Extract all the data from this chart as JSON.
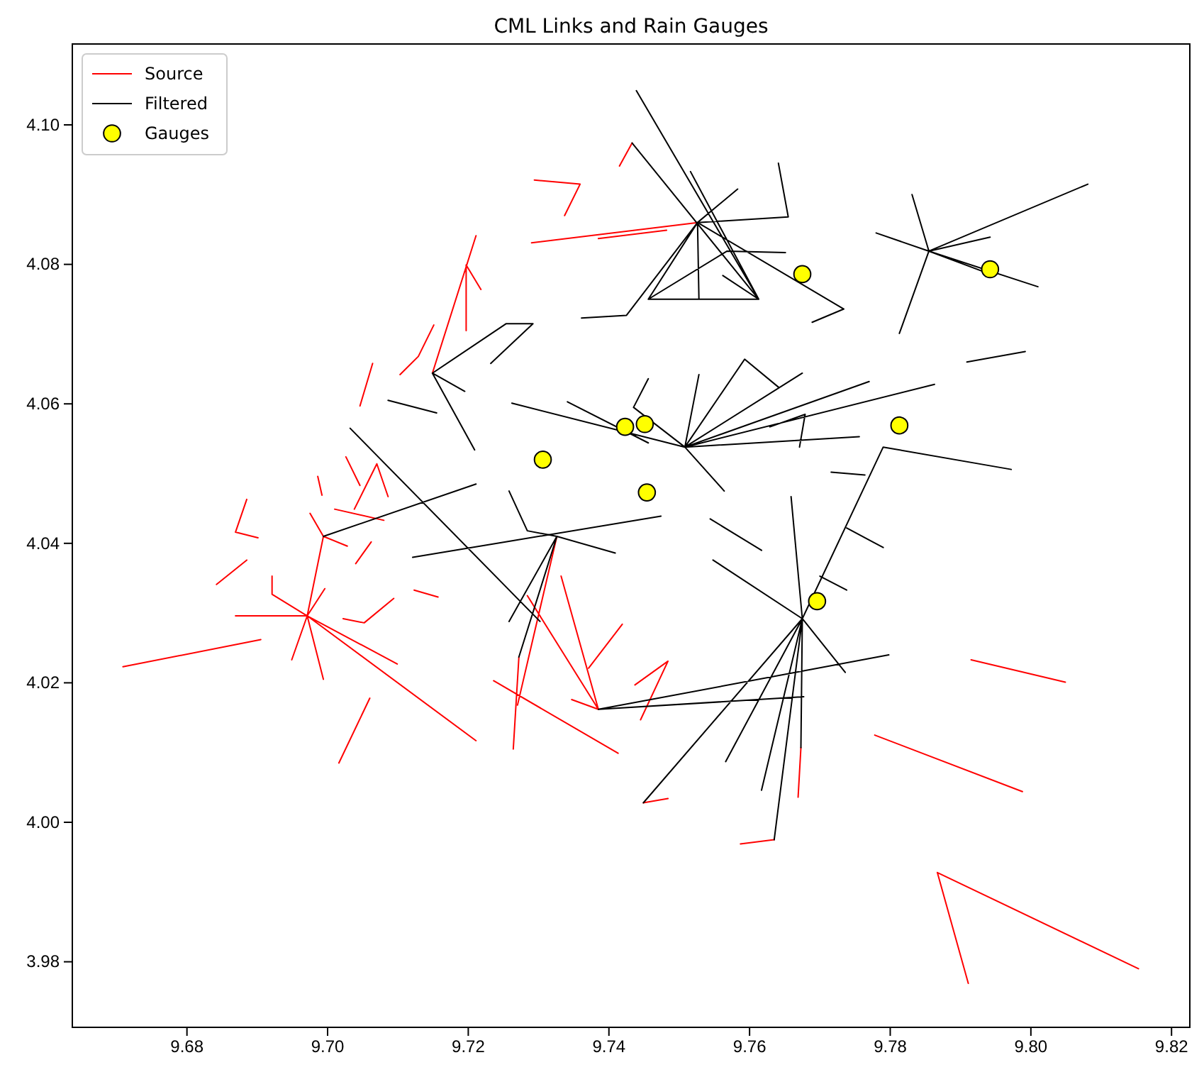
{
  "chart_data": {
    "type": "line",
    "title": "CML Links and Rain Gauges",
    "xlim": [
      9.6637,
      9.8226
    ],
    "ylim": [
      3.9706,
      4.1116
    ],
    "xticks": [
      {
        "value": 9.68,
        "label": "9.68"
      },
      {
        "value": 9.7,
        "label": "9.70"
      },
      {
        "value": 9.72,
        "label": "9.72"
      },
      {
        "value": 9.74,
        "label": "9.74"
      },
      {
        "value": 9.76,
        "label": "9.76"
      },
      {
        "value": 9.78,
        "label": "9.78"
      },
      {
        "value": 9.8,
        "label": "9.80"
      },
      {
        "value": 9.82,
        "label": "9.82"
      }
    ],
    "yticks": [
      {
        "value": 3.98,
        "label": "3.98"
      },
      {
        "value": 4.0,
        "label": "4.00"
      },
      {
        "value": 4.02,
        "label": "4.02"
      },
      {
        "value": 4.04,
        "label": "4.04"
      },
      {
        "value": 4.06,
        "label": "4.06"
      },
      {
        "value": 4.08,
        "label": "4.08"
      },
      {
        "value": 4.1,
        "label": "4.10"
      }
    ],
    "grid": false,
    "legend": "top left",
    "series": [
      {
        "name": "Source",
        "color": "#ff0000",
        "x": [
          9.7415,
          9.7433,
          null,
          9.729,
          9.7526,
          null,
          9.7385,
          9.7482,
          null,
          9.7294,
          9.7359,
          9.7337,
          null,
          9.7149,
          9.7211,
          null,
          9.7197,
          9.7197,
          null,
          9.7197,
          9.7218,
          null,
          9.7103,
          9.7129,
          9.7151,
          null,
          9.7046,
          9.7064,
          null,
          9.7272,
          9.7264,
          null,
          9.7326,
          9.727,
          null,
          9.7332,
          9.7385,
          null,
          9.7284,
          9.7385,
          null,
          9.7347,
          9.7385,
          null,
          9.7236,
          9.7413,
          null,
          9.7371,
          9.7419,
          null,
          9.7437,
          9.7484,
          9.7445,
          null,
          9.7449,
          9.7484,
          null,
          9.7635,
          9.7587,
          null,
          9.7673,
          9.7669,
          null,
          9.6869,
          9.6971,
          null,
          9.6994,
          9.6971,
          9.7211,
          null,
          9.6921,
          9.6921,
          9.6971,
          9.7099,
          null,
          9.6996,
          9.6971,
          9.6949,
          null,
          9.6971,
          9.6994,
          null,
          9.6709,
          9.6905,
          null,
          9.7016,
          9.706,
          null,
          9.6842,
          9.6885,
          null,
          9.6885,
          9.6869,
          9.6901,
          null,
          9.7022,
          9.7052,
          9.7094,
          null,
          9.7123,
          9.7157,
          null,
          9.704,
          9.7062,
          null,
          9.6975,
          9.6994,
          9.7028,
          null,
          9.6986,
          9.6992,
          null,
          9.7026,
          9.7046,
          null,
          9.7038,
          9.707,
          9.7086,
          null,
          9.701,
          9.708,
          null,
          9.7915,
          9.8049,
          null,
          9.7778,
          9.7988,
          null,
          9.7911,
          9.7867,
          9.8153
        ],
        "values": [
          4.0941,
          4.0974,
          null,
          4.0831,
          4.086,
          null,
          4.0837,
          4.0849,
          null,
          4.0921,
          4.0915,
          4.087,
          null,
          4.0644,
          4.0841,
          null,
          4.0799,
          4.0705,
          null,
          4.0799,
          4.0764,
          null,
          4.0642,
          4.0668,
          4.0713,
          null,
          4.0597,
          4.0658,
          null,
          4.0237,
          4.0105,
          null,
          4.041,
          4.0168,
          null,
          4.0353,
          4.0162,
          null,
          4.0325,
          4.0162,
          null,
          4.0176,
          4.0162,
          null,
          4.0203,
          4.0099,
          null,
          4.0221,
          4.0284,
          null,
          4.0197,
          4.0231,
          4.0147,
          null,
          4.0028,
          4.0034,
          null,
          3.9975,
          3.9969,
          null,
          4.0107,
          4.0036,
          null,
          4.0296,
          4.0296,
          null,
          4.041,
          4.0296,
          4.0117,
          null,
          4.0353,
          4.0327,
          4.0296,
          4.0227,
          null,
          4.0335,
          4.0296,
          4.0233,
          null,
          4.0296,
          4.0205,
          null,
          4.0223,
          4.0262,
          null,
          4.0085,
          4.0178,
          null,
          4.0341,
          4.0376,
          null,
          4.0463,
          4.0416,
          4.0408,
          null,
          4.0292,
          4.0286,
          4.0321,
          null,
          4.0333,
          4.0323,
          null,
          4.0371,
          4.0402,
          null,
          4.0443,
          4.041,
          4.0396,
          null,
          4.0496,
          4.0469,
          null,
          4.0524,
          4.0483,
          null,
          4.0449,
          4.0514,
          4.0467,
          null,
          4.0449,
          4.0433,
          null,
          4.0233,
          4.0201,
          null,
          4.0125,
          4.0044,
          null,
          3.9769,
          3.9928,
          3.979
        ]
      },
      {
        "name": "Filtered",
        "color": "#000000",
        "x": [
          9.7439,
          9.7613,
          null,
          9.7433,
          9.7613,
          null,
          9.7516,
          9.7613,
          null,
          9.7528,
          9.7526,
          9.7456,
          9.7613,
          null,
          9.7456,
          9.7568,
          9.7651,
          null,
          9.7526,
          9.7583,
          null,
          9.7526,
          9.7655,
          9.7641,
          null,
          9.7526,
          9.7734,
          9.7689,
          null,
          9.7361,
          9.7425,
          9.7526,
          null,
          9.7562,
          9.7613,
          null,
          9.7149,
          9.7254,
          9.7292,
          9.7232,
          null,
          9.7195,
          9.7149,
          9.7209,
          null,
          9.7086,
          9.7155,
          null,
          9.7262,
          9.7508,
          null,
          9.7341,
          9.7456,
          null,
          9.7456,
          9.7435,
          9.7508,
          null,
          9.7528,
          9.7508,
          9.7593,
          9.7641,
          null,
          9.7675,
          9.7508,
          9.777,
          null,
          9.7863,
          9.7508,
          9.7756,
          null,
          9.7508,
          9.7564,
          null,
          9.7679,
          9.7671,
          null,
          9.7629,
          9.7679,
          null,
          9.7716,
          9.7764,
          null,
          9.7831,
          9.7855,
          9.7813,
          null,
          9.778,
          9.7855,
          9.8081,
          null,
          9.7942,
          9.7855,
          9.801,
          null,
          9.7855,
          9.7942,
          null,
          9.7909,
          9.7992,
          null,
          9.7972,
          9.779,
          9.7675,
          null,
          9.7738,
          9.779,
          null,
          9.77,
          9.7738,
          null,
          9.7659,
          9.7675,
          9.7548,
          null,
          9.7675,
          9.7736,
          null,
          9.7798,
          9.7385,
          9.7677,
          null,
          9.7675,
          9.7449,
          null,
          9.7675,
          9.7566,
          null,
          9.7675,
          9.7617,
          null,
          9.7675,
          9.7635,
          null,
          9.7675,
          9.7673,
          null,
          9.7544,
          9.7617,
          null,
          9.7121,
          9.7474,
          null,
          9.7258,
          9.7284,
          9.7326,
          9.7409,
          null,
          9.7326,
          9.7258,
          null,
          9.7326,
          9.7272,
          null,
          9.7032,
          9.7302,
          null,
          9.6994,
          9.7211
        ],
        "values": [
          4.1049,
          4.075,
          null,
          4.0974,
          4.075,
          null,
          4.0933,
          4.075,
          null,
          4.075,
          4.086,
          4.075,
          4.075,
          null,
          4.075,
          4.0819,
          4.0817,
          null,
          4.086,
          4.0908,
          null,
          4.086,
          4.0868,
          4.0945,
          null,
          4.086,
          4.0736,
          4.0717,
          null,
          4.0723,
          4.0727,
          4.086,
          null,
          4.0784,
          4.075,
          null,
          4.0644,
          4.0715,
          4.0715,
          4.0658,
          null,
          4.0618,
          4.0644,
          4.0534,
          null,
          4.0605,
          4.0587,
          null,
          4.0601,
          4.0538,
          null,
          4.0603,
          4.0544,
          null,
          4.0636,
          4.0595,
          4.0538,
          null,
          4.0642,
          4.0538,
          4.0664,
          4.0624,
          null,
          4.0644,
          4.0538,
          4.0632,
          null,
          4.0628,
          4.0538,
          4.0553,
          null,
          4.0538,
          4.0475,
          null,
          4.0585,
          4.0538,
          null,
          4.0567,
          4.0585,
          null,
          4.0502,
          4.0498,
          null,
          4.09,
          4.0819,
          4.0701,
          null,
          4.0845,
          4.0819,
          4.0915,
          null,
          4.0839,
          4.0819,
          4.0768,
          null,
          4.0819,
          4.0786,
          null,
          4.066,
          4.0675,
          null,
          4.0506,
          4.0538,
          4.0292,
          null,
          4.0422,
          4.0394,
          null,
          4.0353,
          4.0333,
          null,
          4.0467,
          4.0292,
          4.0376,
          null,
          4.0292,
          4.0215,
          null,
          4.024,
          4.0162,
          4.018,
          null,
          4.0292,
          4.0028,
          null,
          4.0292,
          4.0087,
          null,
          4.0292,
          4.0046,
          null,
          4.0292,
          3.9975,
          null,
          4.0292,
          4.0107,
          null,
          4.0435,
          4.039,
          null,
          4.038,
          4.0439,
          null,
          4.0475,
          4.0418,
          4.041,
          4.0386,
          null,
          4.041,
          4.0288,
          null,
          4.041,
          4.0237,
          null,
          4.0565,
          4.0288,
          null,
          4.041,
          4.0485
        ]
      },
      {
        "name": "Gauges",
        "type": "scatter",
        "marker": "circle",
        "color": "#ffff00",
        "x": [
          9.7675,
          9.7942,
          9.7423,
          9.7451,
          9.7306,
          9.7454,
          9.7813,
          9.7696
        ],
        "values": [
          4.0786,
          4.0793,
          4.0567,
          4.0571,
          4.052,
          4.0473,
          4.0569,
          4.0317
        ]
      }
    ]
  }
}
